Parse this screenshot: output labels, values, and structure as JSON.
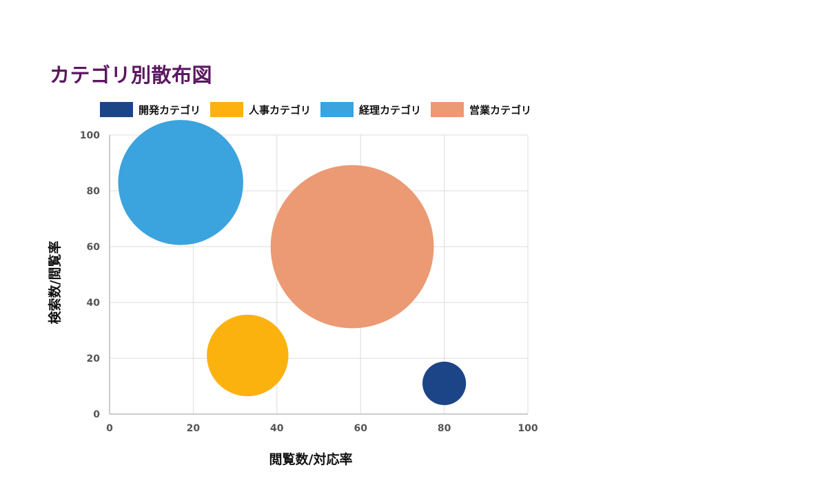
{
  "chart_data": {
    "type": "scatter",
    "title": "カテゴリ別散布図",
    "xlabel": "閲覧数/対応率",
    "ylabel": "検索数/閲覧率",
    "xlim": [
      0,
      100
    ],
    "ylim": [
      0,
      100
    ],
    "x_ticks": [
      "0",
      "20",
      "40",
      "60",
      "80",
      "100"
    ],
    "y_ticks": [
      "0",
      "20",
      "40",
      "60",
      "80",
      "100"
    ],
    "grid": true,
    "legend_position": "top-left",
    "series": [
      {
        "name": "開発カテゴリ",
        "color": "#1c4587",
        "points": [
          {
            "x": 80,
            "y": 11,
            "size": 8
          }
        ]
      },
      {
        "name": "人事カテゴリ",
        "color": "#fbb20f",
        "points": [
          {
            "x": 33,
            "y": 21,
            "size": 15
          }
        ]
      },
      {
        "name": "経理カテゴリ",
        "color": "#3ba3dd",
        "points": [
          {
            "x": 17,
            "y": 83,
            "size": 23
          }
        ]
      },
      {
        "name": "営業カテゴリ",
        "color": "#eb9a73",
        "points": [
          {
            "x": 58,
            "y": 60,
            "size": 30
          }
        ]
      }
    ]
  }
}
